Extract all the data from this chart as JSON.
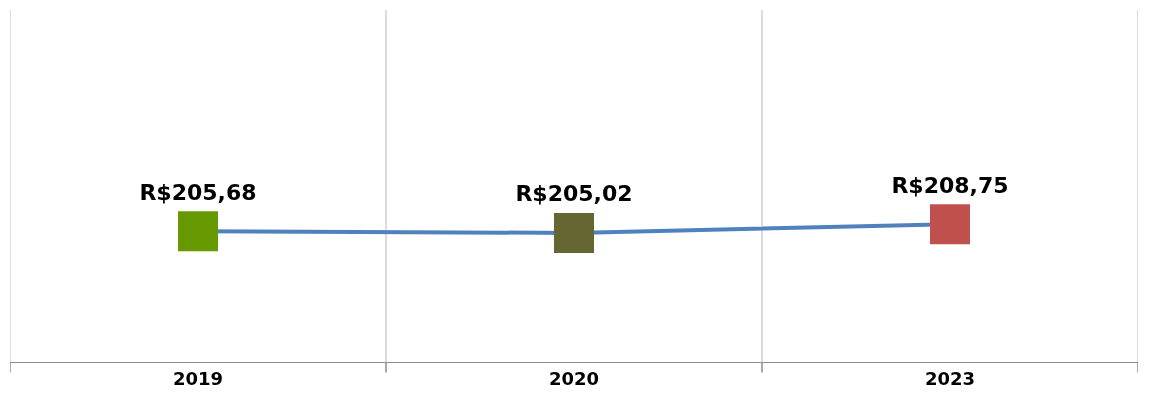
{
  "chart_data": {
    "type": "line",
    "categories": [
      "2019",
      "2020",
      "2023"
    ],
    "values": [
      205.68,
      205.02,
      208.75
    ],
    "value_labels": [
      "R$205,68",
      "R$205,02",
      "R$208,75"
    ],
    "color": "#4f81bd",
    "colors": [
      "#669900",
      "#666633",
      "#c0504d"
    ],
    "marker": "square",
    "ylim": [
      150,
      300
    ],
    "grid": "x",
    "tick_labels": "x"
  }
}
